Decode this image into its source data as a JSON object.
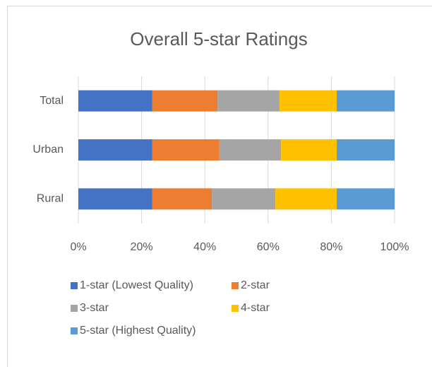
{
  "chart_data": {
    "type": "stacked_barh",
    "title": "Overall 5-star Ratings",
    "categories": [
      "Total",
      "Urban",
      "Rural"
    ],
    "series": [
      {
        "name": "1-star (Lowest Quality)",
        "color": "#4472c4",
        "values": [
          23.4,
          23.4,
          23.4
        ]
      },
      {
        "name": "2-star",
        "color": "#ed7d31",
        "values": [
          20.6,
          21.2,
          18.8
        ]
      },
      {
        "name": "3-star",
        "color": "#a5a5a5",
        "values": [
          19.6,
          19.5,
          20.1
        ]
      },
      {
        "name": "4-star",
        "color": "#ffc000",
        "values": [
          18.1,
          17.6,
          19.4
        ]
      },
      {
        "name": "5-star (Highest Quality)",
        "color": "#5b9bd5",
        "values": [
          18.3,
          18.3,
          18.3
        ]
      }
    ],
    "xlim": [
      0,
      100
    ],
    "xticks": [
      {
        "value": 0,
        "label": "0%"
      },
      {
        "value": 20,
        "label": "20%"
      },
      {
        "value": 40,
        "label": "40%"
      },
      {
        "value": 60,
        "label": "60%"
      },
      {
        "value": 80,
        "label": "80%"
      },
      {
        "value": 100,
        "label": "100%"
      }
    ],
    "grid": true,
    "legend": "bottom"
  }
}
